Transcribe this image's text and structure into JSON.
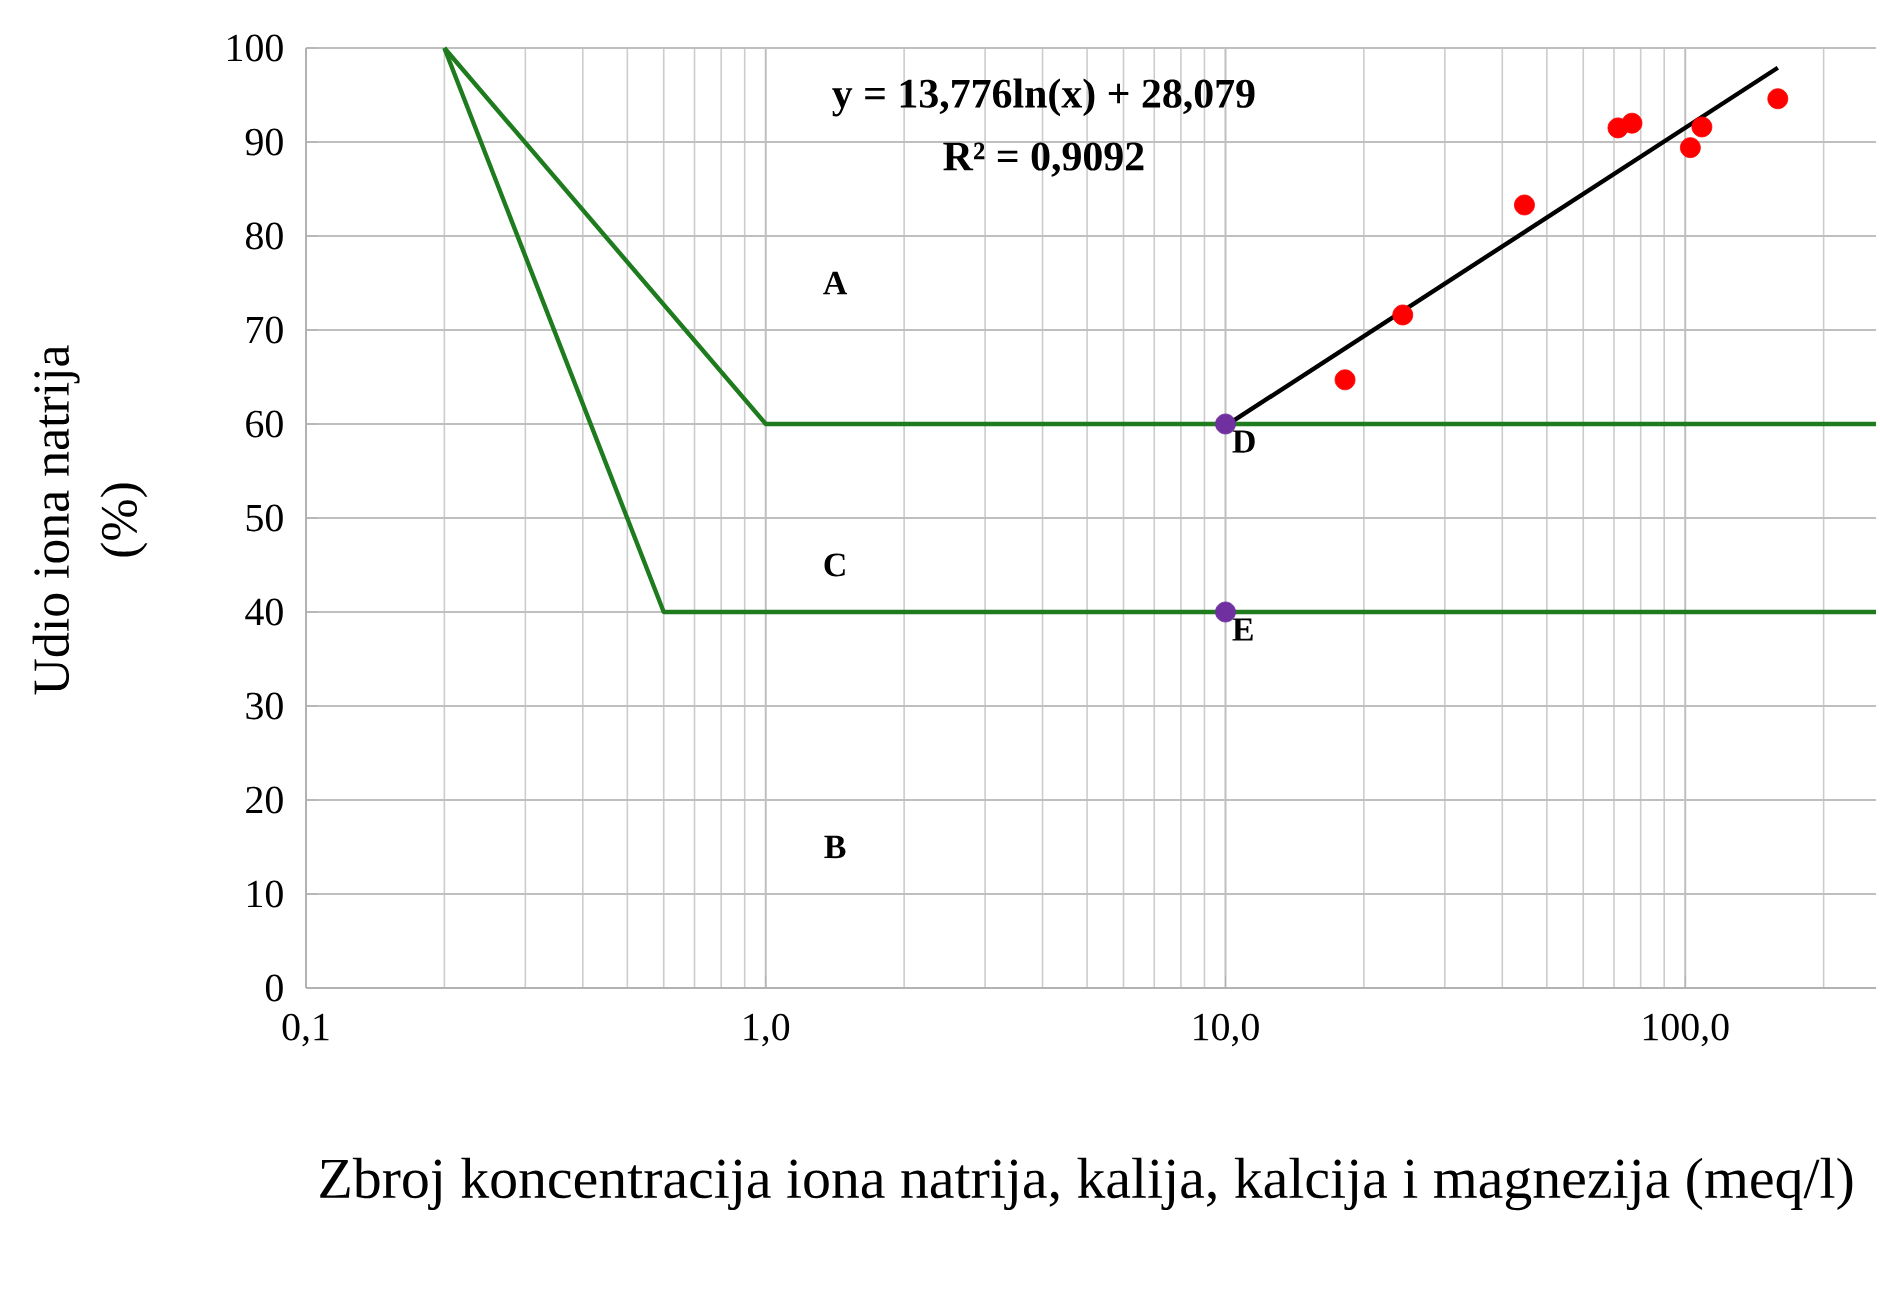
{
  "chart_data": {
    "type": "scatter",
    "xlabel": "Zbroj koncentracija iona natrija, kalija, kalcija i magnezija (meq/l)",
    "ylabel": "Udio iona natrija (%)",
    "log": "x",
    "grid": true,
    "xlim": [
      0.1,
      260
    ],
    "ylim": [
      0,
      100
    ],
    "xticks": [
      {
        "value": 0.1,
        "label": "0,1"
      },
      {
        "value": 1,
        "label": "1,0"
      },
      {
        "value": 10,
        "label": "10,0"
      },
      {
        "value": 100,
        "label": "100,0"
      }
    ],
    "yticks": [
      0,
      10,
      20,
      30,
      40,
      50,
      60,
      70,
      80,
      90,
      100
    ],
    "series": [
      {
        "type": "line",
        "color": "#1e7b1e",
        "x": [
          0.2,
          1,
          260
        ],
        "values": [
          100,
          60,
          60
        ]
      },
      {
        "type": "line",
        "color": "#1e7b1e",
        "x": [
          0.2,
          0.6,
          260
        ],
        "values": [
          100,
          40,
          40
        ]
      },
      {
        "type": "line",
        "color": "#000000",
        "x": [
          10,
          159
        ],
        "values": [
          59.8,
          97.9
        ]
      },
      {
        "color": "#ff0000",
        "marker": "circle",
        "x": [
          18.2,
          24.3,
          44.7,
          71.4,
          76.6,
          102.6,
          108.7,
          159
        ],
        "values": [
          64.7,
          71.6,
          83.3,
          91.5,
          92.0,
          89.4,
          91.6,
          94.6
        ]
      },
      {
        "color": "#7030a0",
        "marker": "circle",
        "x": [
          10,
          10
        ],
        "values": [
          60,
          40
        ]
      }
    ],
    "annotations": [
      "y = 13,776ln(x) + 28,079",
      "R² = 0,9092",
      "A",
      "C",
      "B",
      {
        "text": "D",
        "x": 10,
        "y": 60
      },
      {
        "text": "E",
        "x": 10,
        "y": 40
      }
    ]
  }
}
